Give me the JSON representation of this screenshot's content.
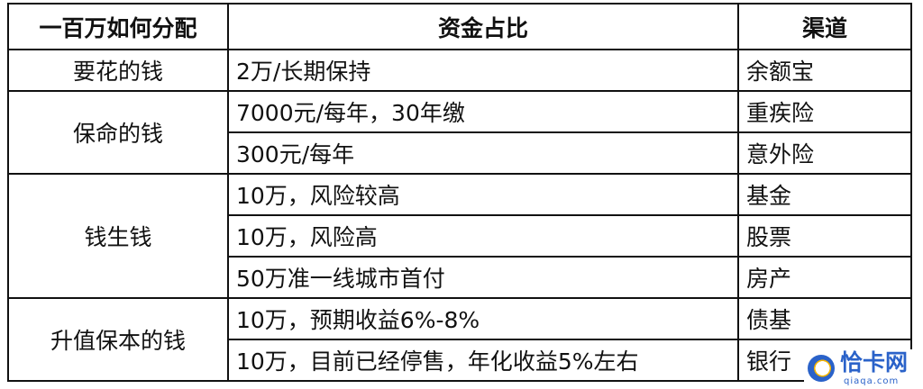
{
  "table": {
    "headers": [
      "一百万如何分配",
      "资金占比",
      "渠道"
    ],
    "groups": [
      {
        "label": "要花的钱",
        "rows": [
          {
            "amount": "2万/长期保持",
            "channel": "余额宝"
          }
        ]
      },
      {
        "label": "保命的钱",
        "rows": [
          {
            "amount": "7000元/每年，30年缴",
            "channel": "重疾险"
          },
          {
            "amount": "300元/每年",
            "channel": "意外险"
          }
        ]
      },
      {
        "label": "钱生钱",
        "rows": [
          {
            "amount": "10万，风险较高",
            "channel": "基金"
          },
          {
            "amount": "10万，风险高",
            "channel": "股票"
          },
          {
            "amount": "50万准一线城市首付",
            "channel": "房产"
          }
        ]
      },
      {
        "label": "升值保本的钱",
        "rows": [
          {
            "amount": "10万，预期收益6%-8%",
            "channel": "债基"
          },
          {
            "amount": "10万，目前已经停售，年化收益5%左右",
            "channel": "银行"
          }
        ]
      }
    ]
  },
  "watermark": {
    "name": "恰卡网",
    "url": "qiaqa.com",
    "color": "#2a62c9"
  }
}
